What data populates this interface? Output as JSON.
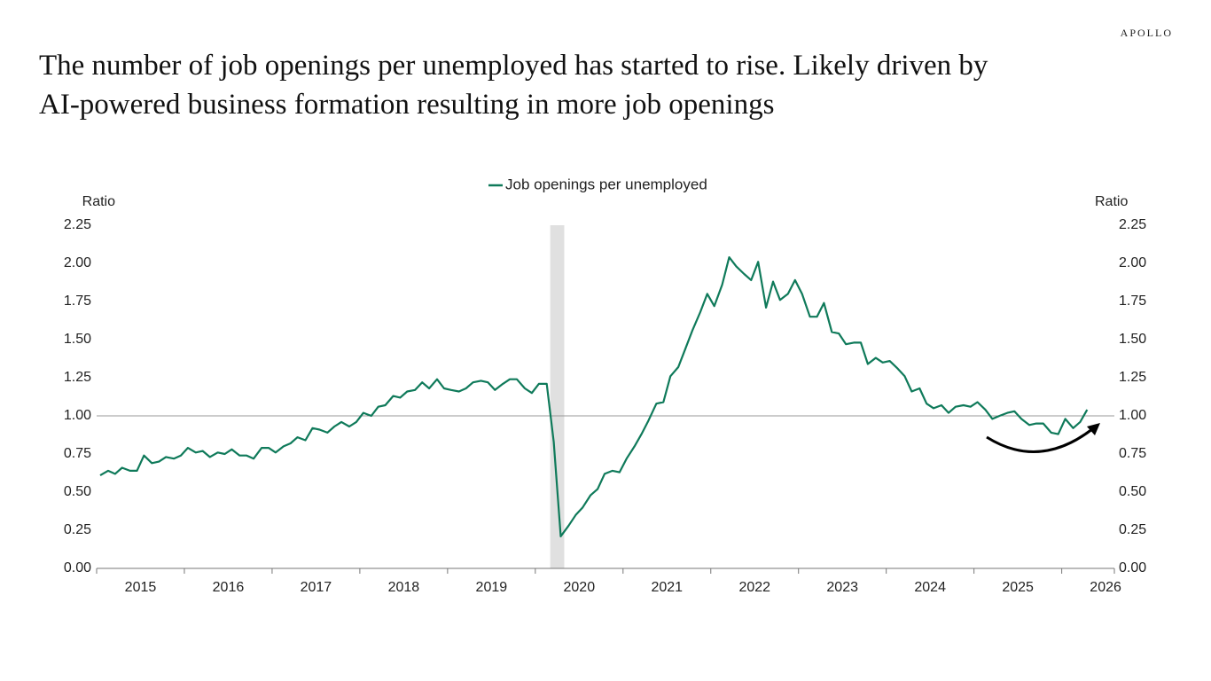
{
  "brand": "APOLLO",
  "chart_data": {
    "type": "line",
    "title": "The number of job openings per unemployed has started to rise. Likely driven by AI-powered business formation resulting in more job openings",
    "ylabel": "Ratio",
    "y2label": "Ratio",
    "x": [
      2015.04,
      2015.13,
      2015.21,
      2015.29,
      2015.38,
      2015.46,
      2015.54,
      2015.63,
      2015.71,
      2015.79,
      2015.88,
      2015.96,
      2016.04,
      2016.13,
      2016.21,
      2016.29,
      2016.38,
      2016.46,
      2016.54,
      2016.63,
      2016.71,
      2016.79,
      2016.88,
      2016.96,
      2017.04,
      2017.13,
      2017.21,
      2017.29,
      2017.38,
      2017.46,
      2017.54,
      2017.63,
      2017.71,
      2017.79,
      2017.88,
      2017.96,
      2018.04,
      2018.13,
      2018.21,
      2018.29,
      2018.38,
      2018.46,
      2018.54,
      2018.63,
      2018.71,
      2018.79,
      2018.88,
      2018.96,
      2019.04,
      2019.13,
      2019.21,
      2019.29,
      2019.38,
      2019.46,
      2019.54,
      2019.63,
      2019.71,
      2019.79,
      2019.88,
      2019.96,
      2020.04,
      2020.13,
      2020.21,
      2020.29,
      2020.38,
      2020.46,
      2020.54,
      2020.63,
      2020.71,
      2020.79,
      2020.88,
      2020.96,
      2021.04,
      2021.13,
      2021.21,
      2021.29,
      2021.38,
      2021.46,
      2021.54,
      2021.63,
      2021.71,
      2021.79,
      2021.88,
      2021.96,
      2022.04,
      2022.13,
      2022.21,
      2022.29,
      2022.38,
      2022.46,
      2022.54,
      2022.63,
      2022.71,
      2022.79,
      2022.88,
      2022.96,
      2023.04,
      2023.13,
      2023.21,
      2023.29,
      2023.38,
      2023.46,
      2023.54,
      2023.63,
      2023.71,
      2023.79,
      2023.88,
      2023.96,
      2024.04,
      2024.13,
      2024.21,
      2024.29,
      2024.38,
      2024.46,
      2024.54,
      2024.63,
      2024.71,
      2024.79,
      2024.88,
      2024.96,
      2025.04,
      2025.13,
      2025.21,
      2025.29,
      2025.38,
      2025.46,
      2025.54,
      2025.63,
      2025.71,
      2025.79,
      2025.88,
      2025.96,
      2026.04,
      2026.13,
      2026.21,
      2026.29
    ],
    "series": [
      {
        "name": "Job openings per unemployed",
        "color": "#0f7a5a",
        "values": [
          0.61,
          0.64,
          0.62,
          0.66,
          0.64,
          0.64,
          0.74,
          0.69,
          0.7,
          0.73,
          0.72,
          0.74,
          0.79,
          0.76,
          0.77,
          0.73,
          0.76,
          0.75,
          0.78,
          0.74,
          0.74,
          0.72,
          0.79,
          0.79,
          0.76,
          0.8,
          0.82,
          0.86,
          0.84,
          0.92,
          0.91,
          0.89,
          0.93,
          0.96,
          0.93,
          0.96,
          1.02,
          1.0,
          1.06,
          1.07,
          1.13,
          1.12,
          1.16,
          1.17,
          1.22,
          1.18,
          1.24,
          1.18,
          1.17,
          1.16,
          1.18,
          1.22,
          1.23,
          1.22,
          1.17,
          1.21,
          1.24,
          1.24,
          1.18,
          1.15,
          1.21,
          1.21,
          0.83,
          0.21,
          0.28,
          0.35,
          0.4,
          0.48,
          0.52,
          0.62,
          0.64,
          0.63,
          0.72,
          0.8,
          0.88,
          0.97,
          1.08,
          1.09,
          1.26,
          1.32,
          1.44,
          1.56,
          1.68,
          1.8,
          1.72,
          1.86,
          2.04,
          1.98,
          1.93,
          1.89,
          2.01,
          1.71,
          1.88,
          1.76,
          1.8,
          1.89,
          1.8,
          1.65,
          1.65,
          1.74,
          1.55,
          1.54,
          1.47,
          1.48,
          1.48,
          1.34,
          1.38,
          1.35,
          1.36,
          1.31,
          1.26,
          1.16,
          1.18,
          1.08,
          1.05,
          1.07,
          1.02,
          1.06,
          1.07,
          1.06,
          1.09,
          1.04,
          0.98,
          1.0,
          1.02,
          1.03,
          0.98,
          0.94,
          0.95,
          0.95,
          0.89,
          0.88,
          0.98,
          0.92,
          0.96,
          1.04
        ]
      }
    ],
    "xlim": [
      2015,
      2026.6
    ],
    "xticks": [
      {
        "value": 2015,
        "label": "2015"
      },
      {
        "value": 2016,
        "label": "2016"
      },
      {
        "value": 2017,
        "label": "2017"
      },
      {
        "value": 2018,
        "label": "2018"
      },
      {
        "value": 2019,
        "label": "2019"
      },
      {
        "value": 2020,
        "label": "2020"
      },
      {
        "value": 2021,
        "label": "2021"
      },
      {
        "value": 2022,
        "label": "2022"
      },
      {
        "value": 2023,
        "label": "2023"
      },
      {
        "value": 2024,
        "label": "2024"
      },
      {
        "value": 2025,
        "label": "2025"
      },
      {
        "value": 2026,
        "label": "2026"
      }
    ],
    "ylim": [
      0,
      2.25
    ],
    "yticks": [
      {
        "value": 0,
        "label": "0.00"
      },
      {
        "value": 0.25,
        "label": "0.25"
      },
      {
        "value": 0.5,
        "label": "0.50"
      },
      {
        "value": 0.75,
        "label": "0.75"
      },
      {
        "value": 1,
        "label": "1.00"
      },
      {
        "value": 1.25,
        "label": "1.25"
      },
      {
        "value": 1.5,
        "label": "1.50"
      },
      {
        "value": 1.75,
        "label": "1.75"
      },
      {
        "value": 2,
        "label": "2.00"
      },
      {
        "value": 2.25,
        "label": "2.25"
      }
    ],
    "y2lim": [
      0,
      2.25
    ],
    "y2ticks": [
      {
        "value": 0,
        "label": "0.00"
      },
      {
        "value": 0.25,
        "label": "0.25"
      },
      {
        "value": 0.5,
        "label": "0.50"
      },
      {
        "value": 0.75,
        "label": "0.75"
      },
      {
        "value": 1,
        "label": "1.00"
      },
      {
        "value": 1.25,
        "label": "1.25"
      },
      {
        "value": 1.5,
        "label": "1.50"
      },
      {
        "value": 1.75,
        "label": "1.75"
      },
      {
        "value": 2,
        "label": "2.00"
      },
      {
        "value": 2.25,
        "label": "2.25"
      }
    ],
    "reference_line": 1,
    "shaded_band": [
      2020.17,
      2020.33
    ],
    "legend": "top"
  }
}
